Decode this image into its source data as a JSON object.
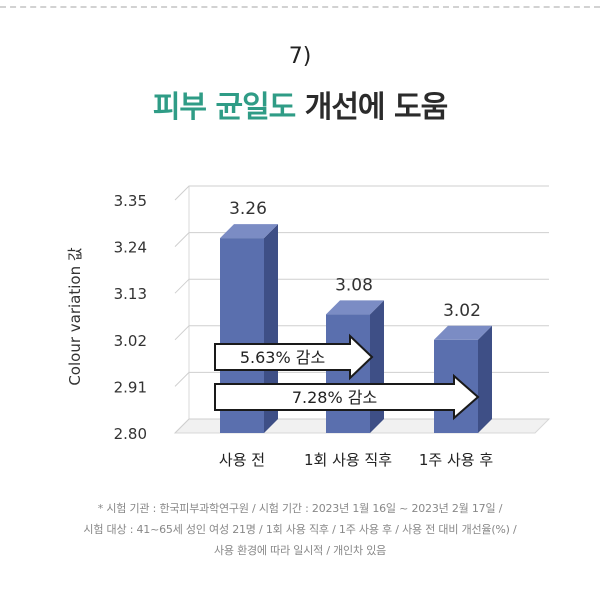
{
  "header": {
    "number": "7)",
    "title_accent": "피부 균일도",
    "title_rest": " 개선에 도움"
  },
  "chart_data": {
    "type": "bar",
    "categories": [
      "사용 전",
      "1회 사용 직후",
      "1주 사용 후"
    ],
    "values": [
      3.26,
      3.08,
      3.02
    ],
    "value_labels": [
      "3.26",
      "3.08",
      "3.02"
    ],
    "ylabel": "Colour variation 값",
    "yticks": [
      "3.35",
      "3.24",
      "3.13",
      "3.02",
      "2.91",
      "2.80"
    ],
    "ylim": [
      2.8,
      3.35
    ],
    "grid": true,
    "annotations": [
      {
        "text": "5.63% 감소",
        "from": "사용 전",
        "to": "1회 사용 직후"
      },
      {
        "text": "7.28% 감소",
        "from": "사용 전",
        "to": "1주 사용 후"
      }
    ]
  },
  "footnote": {
    "line1": "* 시험 기관 : 한국피부과학연구원 / 시험 기간 : 2023년 1월 16일 ~ 2023년 2월 17일 /",
    "line2": "시험 대상 : 41~65세 성인 여성 21명 / 1회 사용 직후 / 1주 사용 후 / 사용 전 대비 개선율(%) /",
    "line3": "사용 환경에 따라 일시적 / 개인차 있음"
  },
  "colors": {
    "accent": "#2f9c86",
    "bar_front": "#5a6fae",
    "bar_side": "#3e4f86",
    "bar_top": "#7b8cc4",
    "grid": "#cfcfcf",
    "arrow_stroke": "#1a1a1a"
  }
}
